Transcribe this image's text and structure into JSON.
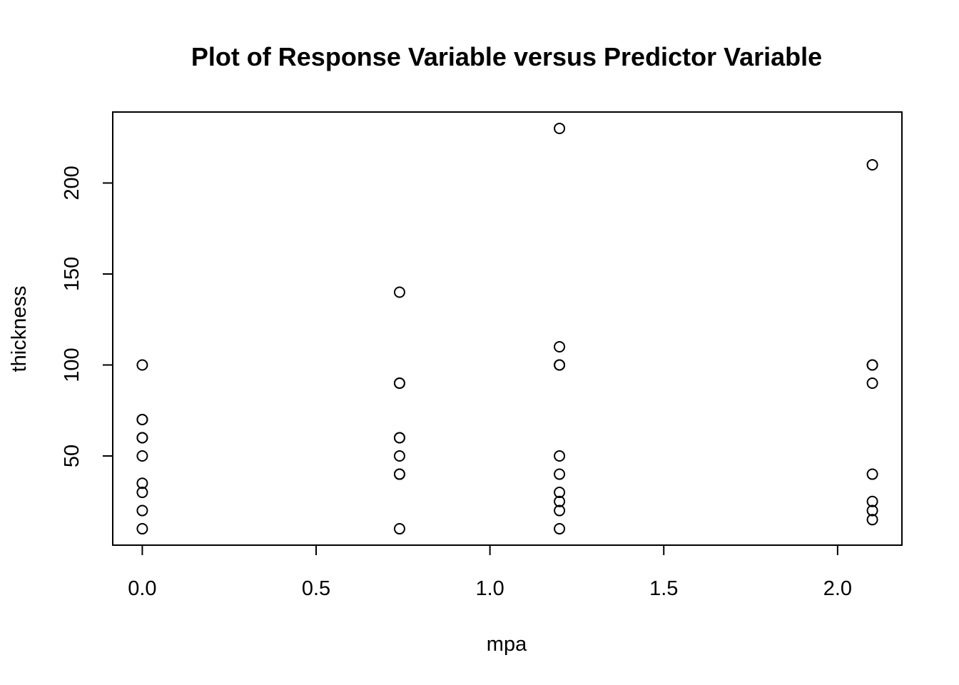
{
  "chart_data": {
    "type": "scatter",
    "title": "Plot of Response Variable versus Predictor Variable",
    "xlabel": "mpa",
    "ylabel": "thickness",
    "xlim": [
      -0.085,
      2.185
    ],
    "ylim": [
      1,
      239
    ],
    "xticks": [
      0,
      0.5,
      1,
      1.5,
      2
    ],
    "xtick_labels": [
      "0.0",
      "0.5",
      "1.0",
      "1.5",
      "2.0"
    ],
    "yticks": [
      50,
      100,
      150,
      200
    ],
    "ytick_labels": [
      "50",
      "100",
      "150",
      "200"
    ],
    "grid": false,
    "marker": "open-circle",
    "points": [
      {
        "x": 0,
        "y": 100
      },
      {
        "x": 0,
        "y": 70
      },
      {
        "x": 0,
        "y": 70
      },
      {
        "x": 0,
        "y": 60
      },
      {
        "x": 0,
        "y": 60
      },
      {
        "x": 0,
        "y": 50
      },
      {
        "x": 0,
        "y": 35
      },
      {
        "x": 0,
        "y": 30
      },
      {
        "x": 0,
        "y": 20
      },
      {
        "x": 0,
        "y": 10
      },
      {
        "x": 0.74,
        "y": 140
      },
      {
        "x": 0.74,
        "y": 90
      },
      {
        "x": 0.74,
        "y": 90
      },
      {
        "x": 0.74,
        "y": 60
      },
      {
        "x": 0.74,
        "y": 60
      },
      {
        "x": 0.74,
        "y": 50
      },
      {
        "x": 0.74,
        "y": 40
      },
      {
        "x": 0.74,
        "y": 40
      },
      {
        "x": 0.74,
        "y": 10
      },
      {
        "x": 1.2,
        "y": 230
      },
      {
        "x": 1.2,
        "y": 110
      },
      {
        "x": 1.2,
        "y": 100
      },
      {
        "x": 1.2,
        "y": 100
      },
      {
        "x": 1.2,
        "y": 50
      },
      {
        "x": 1.2,
        "y": 40
      },
      {
        "x": 1.2,
        "y": 30
      },
      {
        "x": 1.2,
        "y": 25
      },
      {
        "x": 1.2,
        "y": 20
      },
      {
        "x": 1.2,
        "y": 10
      },
      {
        "x": 2.1,
        "y": 210
      },
      {
        "x": 2.1,
        "y": 100
      },
      {
        "x": 2.1,
        "y": 100
      },
      {
        "x": 2.1,
        "y": 90
      },
      {
        "x": 2.1,
        "y": 40
      },
      {
        "x": 2.1,
        "y": 25
      },
      {
        "x": 2.1,
        "y": 20
      },
      {
        "x": 2.1,
        "y": 15
      }
    ]
  }
}
